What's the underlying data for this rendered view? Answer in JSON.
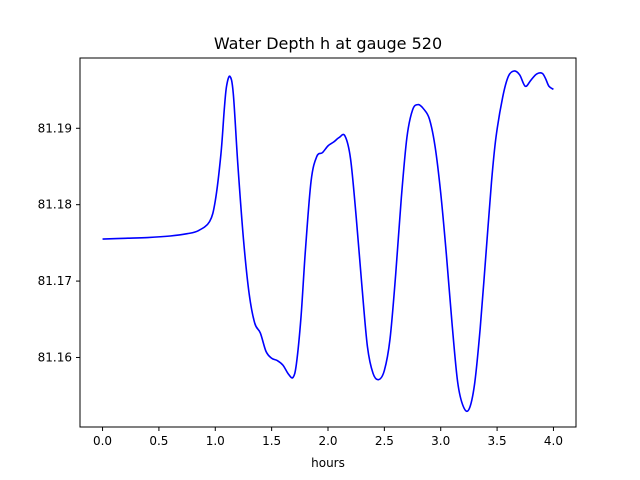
{
  "chart_data": {
    "type": "line",
    "title": "Water Depth h at gauge 520",
    "xlabel": "hours",
    "ylabel": "",
    "xlim": [
      -0.2,
      4.2
    ],
    "ylim": [
      81.1509,
      81.1992
    ],
    "xticks": [
      0.0,
      0.5,
      1.0,
      1.5,
      2.0,
      2.5,
      3.0,
      3.5,
      4.0
    ],
    "xtick_labels": [
      "0.0",
      "0.5",
      "1.0",
      "1.5",
      "2.0",
      "2.5",
      "3.0",
      "3.5",
      "4.0"
    ],
    "yticks": [
      81.16,
      81.17,
      81.18,
      81.19
    ],
    "ytick_labels": [
      "81.16",
      "81.17",
      "81.18",
      "81.19"
    ],
    "grid": false,
    "series": [
      {
        "color": "#0000ff",
        "x": [
          0.0,
          0.2,
          0.4,
          0.6,
          0.75,
          0.85,
          0.95,
          1.0,
          1.05,
          1.08,
          1.1,
          1.13,
          1.16,
          1.2,
          1.25,
          1.3,
          1.35,
          1.4,
          1.45,
          1.5,
          1.55,
          1.6,
          1.65,
          1.69,
          1.72,
          1.76,
          1.8,
          1.85,
          1.9,
          1.95,
          2.0,
          2.05,
          2.1,
          2.15,
          2.2,
          2.25,
          2.3,
          2.35,
          2.4,
          2.45,
          2.5,
          2.55,
          2.6,
          2.65,
          2.7,
          2.75,
          2.8,
          2.85,
          2.9,
          2.95,
          3.0,
          3.05,
          3.1,
          3.15,
          3.2,
          3.25,
          3.3,
          3.35,
          3.4,
          3.45,
          3.49,
          3.55,
          3.6,
          3.65,
          3.7,
          3.75,
          3.8,
          3.85,
          3.9,
          3.93,
          3.96,
          4.0
        ],
        "y": [
          81.1755,
          81.1756,
          81.1757,
          81.1759,
          81.1762,
          81.1766,
          81.1778,
          81.1805,
          81.1866,
          81.1925,
          81.1955,
          81.1968,
          81.1945,
          81.1853,
          81.1755,
          81.1684,
          81.1645,
          81.1632,
          81.1608,
          81.1599,
          81.1596,
          81.159,
          81.1578,
          81.1574,
          81.1592,
          81.1652,
          81.1741,
          81.1831,
          81.1863,
          81.1868,
          81.1877,
          81.1882,
          81.1888,
          81.189,
          81.186,
          81.1784,
          81.1695,
          81.1614,
          81.1579,
          81.1571,
          81.1583,
          81.1624,
          81.1708,
          81.1808,
          81.1888,
          81.1924,
          81.1931,
          81.1925,
          81.1912,
          81.1876,
          81.1815,
          81.1735,
          81.1645,
          81.1568,
          81.1536,
          81.1532,
          81.1565,
          81.1638,
          81.1733,
          81.1829,
          81.1888,
          81.1941,
          81.1968,
          81.1975,
          81.197,
          81.1955,
          81.1963,
          81.1971,
          81.1972,
          81.1965,
          81.1955,
          81.1951
        ]
      }
    ]
  }
}
